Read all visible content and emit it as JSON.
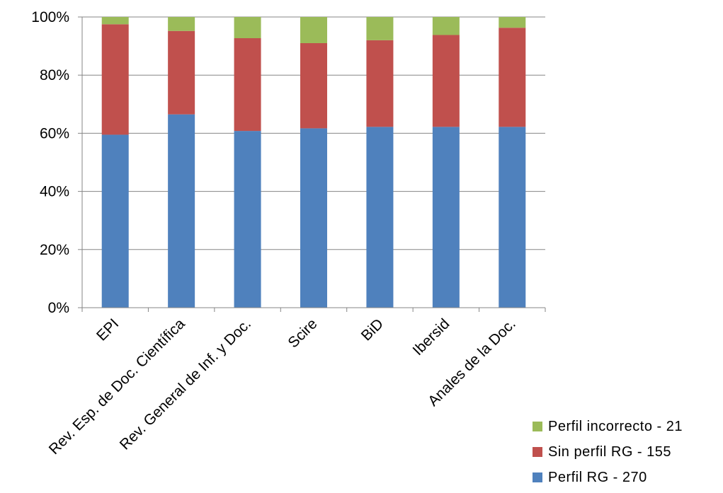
{
  "chart_data": {
    "type": "bar",
    "stacked": true,
    "percent": true,
    "categories": [
      "EPI",
      "Rev. Esp. de Doc. Científica",
      "Rev. General de Inf. y Doc.",
      "Scire",
      "BiD",
      "Ibersid",
      "Anales de la Doc."
    ],
    "series": [
      {
        "name": "Perfil RG - 270",
        "color": "#4f81bd",
        "values": [
          59.5,
          66.5,
          60.8,
          61.7,
          62.2,
          62.2,
          62.2
        ]
      },
      {
        "name": "Sin perfil RG - 155",
        "color": "#c0504d",
        "values": [
          38.0,
          28.7,
          31.9,
          29.3,
          29.8,
          31.6,
          34.1
        ]
      },
      {
        "name": "Perfil incorrecto - 21",
        "color": "#9bbb59",
        "values": [
          2.5,
          4.8,
          7.3,
          9.0,
          8.0,
          6.2,
          3.7
        ]
      }
    ],
    "yticks": [
      "0%",
      "20%",
      "40%",
      "60%",
      "80%",
      "100%"
    ],
    "ylim": [
      0,
      100
    ],
    "grid": true,
    "legend_position": "bottom-right",
    "legend_order": [
      "Perfil incorrecto - 21",
      "Sin perfil RG - 155",
      "Perfil RG - 270"
    ]
  }
}
